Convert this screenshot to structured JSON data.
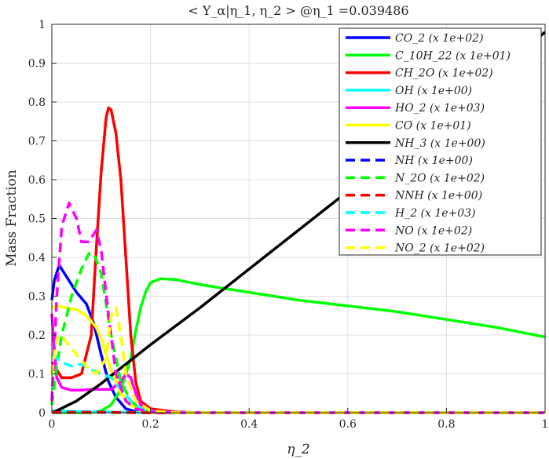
{
  "chart_data": {
    "type": "line",
    "title": "< Y_α|η_1, η_2 > @η_1 =0.039486",
    "xlabel": "η_2",
    "ylabel": "Mass Fraction",
    "xlim": [
      0,
      1
    ],
    "ylim": [
      0,
      1
    ],
    "xticks": [
      "0",
      "0.2",
      "0.4",
      "0.6",
      "0.8",
      "1"
    ],
    "yticks": [
      "0",
      "0.1",
      "0.2",
      "0.3",
      "0.4",
      "0.5",
      "0.6",
      "0.7",
      "0.8",
      "0.9",
      "1"
    ],
    "grid": true,
    "legend_position": "top-right",
    "series": [
      {
        "name": "CO_2 (x 1e+02)",
        "color": "#0000ff",
        "dash": "solid",
        "points": [
          [
            0,
            0.29
          ],
          [
            0.005,
            0.34
          ],
          [
            0.015,
            0.38
          ],
          [
            0.03,
            0.35
          ],
          [
            0.05,
            0.31
          ],
          [
            0.07,
            0.28
          ],
          [
            0.085,
            0.23
          ],
          [
            0.1,
            0.15
          ],
          [
            0.115,
            0.08
          ],
          [
            0.13,
            0.04
          ],
          [
            0.15,
            0.01
          ],
          [
            0.17,
            0.003
          ],
          [
            0.2,
            0
          ],
          [
            1,
            0
          ]
        ]
      },
      {
        "name": "C_10H_22 (x 1e+01)",
        "color": "#00ff00",
        "dash": "solid",
        "points": [
          [
            0,
            0
          ],
          [
            0.05,
            0
          ],
          [
            0.08,
            0
          ],
          [
            0.1,
            0.005
          ],
          [
            0.12,
            0.02
          ],
          [
            0.14,
            0.06
          ],
          [
            0.16,
            0.14
          ],
          [
            0.17,
            0.21
          ],
          [
            0.18,
            0.27
          ],
          [
            0.19,
            0.31
          ],
          [
            0.2,
            0.335
          ],
          [
            0.22,
            0.345
          ],
          [
            0.25,
            0.343
          ],
          [
            0.3,
            0.33
          ],
          [
            0.4,
            0.31
          ],
          [
            0.5,
            0.29
          ],
          [
            0.6,
            0.275
          ],
          [
            0.7,
            0.26
          ],
          [
            0.8,
            0.24
          ],
          [
            0.9,
            0.22
          ],
          [
            1,
            0.195
          ]
        ]
      },
      {
        "name": "CH_2O (x 1e+02)",
        "color": "#ff0000",
        "dash": "solid",
        "points": [
          [
            0,
            0.13
          ],
          [
            0.02,
            0.09
          ],
          [
            0.04,
            0.09
          ],
          [
            0.06,
            0.1
          ],
          [
            0.08,
            0.2
          ],
          [
            0.09,
            0.42
          ],
          [
            0.1,
            0.62
          ],
          [
            0.11,
            0.76
          ],
          [
            0.115,
            0.785
          ],
          [
            0.12,
            0.78
          ],
          [
            0.13,
            0.72
          ],
          [
            0.14,
            0.6
          ],
          [
            0.15,
            0.4
          ],
          [
            0.16,
            0.2
          ],
          [
            0.17,
            0.08
          ],
          [
            0.18,
            0.03
          ],
          [
            0.2,
            0.01
          ],
          [
            0.25,
            0.002
          ],
          [
            0.3,
            0
          ],
          [
            1,
            0
          ]
        ]
      },
      {
        "name": "OH (x 1e+00)",
        "color": "#00ffff",
        "dash": "solid",
        "points": [
          [
            0,
            0.005
          ],
          [
            0.05,
            0.003
          ],
          [
            0.15,
            0.001
          ],
          [
            0.25,
            0
          ],
          [
            1,
            0
          ]
        ]
      },
      {
        "name": "HO_2 (x 1e+03)",
        "color": "#ff00ff",
        "dash": "solid",
        "points": [
          [
            0,
            0.255
          ],
          [
            0.005,
            0.16
          ],
          [
            0.01,
            0.09
          ],
          [
            0.02,
            0.065
          ],
          [
            0.04,
            0.058
          ],
          [
            0.06,
            0.058
          ],
          [
            0.08,
            0.06
          ],
          [
            0.1,
            0.06
          ],
          [
            0.12,
            0.06
          ],
          [
            0.14,
            0.08
          ],
          [
            0.15,
            0.1
          ],
          [
            0.16,
            0.09
          ],
          [
            0.17,
            0.05
          ],
          [
            0.18,
            0.02
          ],
          [
            0.2,
            0.005
          ],
          [
            0.25,
            0
          ],
          [
            1,
            0
          ]
        ]
      },
      {
        "name": "CO (x 1e+01)",
        "color": "#ffff00",
        "dash": "solid",
        "points": [
          [
            0,
            0.27
          ],
          [
            0.01,
            0.275
          ],
          [
            0.03,
            0.27
          ],
          [
            0.05,
            0.265
          ],
          [
            0.07,
            0.25
          ],
          [
            0.09,
            0.22
          ],
          [
            0.1,
            0.19
          ],
          [
            0.12,
            0.11
          ],
          [
            0.14,
            0.05
          ],
          [
            0.16,
            0.02
          ],
          [
            0.18,
            0.005
          ],
          [
            0.2,
            0
          ],
          [
            1,
            0
          ]
        ]
      },
      {
        "name": "NH_3 (x 1e+00)",
        "color": "#000000",
        "dash": "solid",
        "points": [
          [
            0,
            0
          ],
          [
            0.01,
            0.005
          ],
          [
            0.05,
            0.03
          ],
          [
            0.1,
            0.075
          ],
          [
            0.15,
            0.125
          ],
          [
            0.2,
            0.175
          ],
          [
            0.3,
            0.27
          ],
          [
            0.4,
            0.37
          ],
          [
            0.5,
            0.47
          ],
          [
            0.6,
            0.57
          ],
          [
            0.7,
            0.675
          ],
          [
            0.8,
            0.775
          ],
          [
            0.9,
            0.875
          ],
          [
            1,
            0.98
          ]
        ]
      },
      {
        "name": "NH (x 1e+00)",
        "color": "#0000ff",
        "dash": "dashed",
        "points": [
          [
            0,
            0.001
          ],
          [
            0.1,
            0.001
          ],
          [
            0.2,
            0
          ],
          [
            1,
            0
          ]
        ]
      },
      {
        "name": "N_2O (x 1e+02)",
        "color": "#00ff00",
        "dash": "dashed",
        "points": [
          [
            0,
            0.02
          ],
          [
            0.01,
            0.12
          ],
          [
            0.02,
            0.2
          ],
          [
            0.04,
            0.3
          ],
          [
            0.06,
            0.37
          ],
          [
            0.075,
            0.41
          ],
          [
            0.085,
            0.41
          ],
          [
            0.1,
            0.36
          ],
          [
            0.12,
            0.2
          ],
          [
            0.14,
            0.08
          ],
          [
            0.16,
            0.03
          ],
          [
            0.18,
            0.01
          ],
          [
            0.2,
            0.003
          ],
          [
            0.25,
            0
          ],
          [
            1,
            0
          ]
        ]
      },
      {
        "name": "NNH (x 1e+00)",
        "color": "#ff0000",
        "dash": "dashed",
        "points": [
          [
            0,
            0.001
          ],
          [
            0.1,
            0.001
          ],
          [
            0.2,
            0
          ],
          [
            1,
            0
          ]
        ]
      },
      {
        "name": "H_2 (x 1e+03)",
        "color": "#00ffff",
        "dash": "dashed",
        "points": [
          [
            0,
            0.15
          ],
          [
            0.02,
            0.13
          ],
          [
            0.04,
            0.12
          ],
          [
            0.06,
            0.125
          ],
          [
            0.08,
            0.11
          ],
          [
            0.1,
            0.1
          ],
          [
            0.12,
            0.09
          ],
          [
            0.14,
            0.06
          ],
          [
            0.16,
            0.03
          ],
          [
            0.18,
            0.01
          ],
          [
            0.2,
            0.003
          ],
          [
            0.25,
            0
          ],
          [
            1,
            0
          ]
        ]
      },
      {
        "name": "NO (x 1e+02)",
        "color": "#ff00ff",
        "dash": "dashed",
        "points": [
          [
            0,
            0.03
          ],
          [
            0.01,
            0.3
          ],
          [
            0.02,
            0.48
          ],
          [
            0.035,
            0.54
          ],
          [
            0.05,
            0.5
          ],
          [
            0.06,
            0.44
          ],
          [
            0.075,
            0.44
          ],
          [
            0.09,
            0.47
          ],
          [
            0.1,
            0.42
          ],
          [
            0.115,
            0.25
          ],
          [
            0.13,
            0.1
          ],
          [
            0.15,
            0.03
          ],
          [
            0.17,
            0.01
          ],
          [
            0.2,
            0.002
          ],
          [
            0.25,
            0
          ],
          [
            1,
            0
          ]
        ]
      },
      {
        "name": "NO_2 (x 1e+02)",
        "color": "#ffff00",
        "dash": "dashed",
        "points": [
          [
            0,
            0.1
          ],
          [
            0.01,
            0.19
          ],
          [
            0.02,
            0.2
          ],
          [
            0.03,
            0.18
          ],
          [
            0.05,
            0.15
          ],
          [
            0.07,
            0.12
          ],
          [
            0.09,
            0.1
          ],
          [
            0.11,
            0.14
          ],
          [
            0.12,
            0.25
          ],
          [
            0.13,
            0.27
          ],
          [
            0.14,
            0.2
          ],
          [
            0.15,
            0.1
          ],
          [
            0.17,
            0.03
          ],
          [
            0.2,
            0.005
          ],
          [
            0.25,
            0
          ],
          [
            1,
            0
          ]
        ]
      }
    ]
  }
}
